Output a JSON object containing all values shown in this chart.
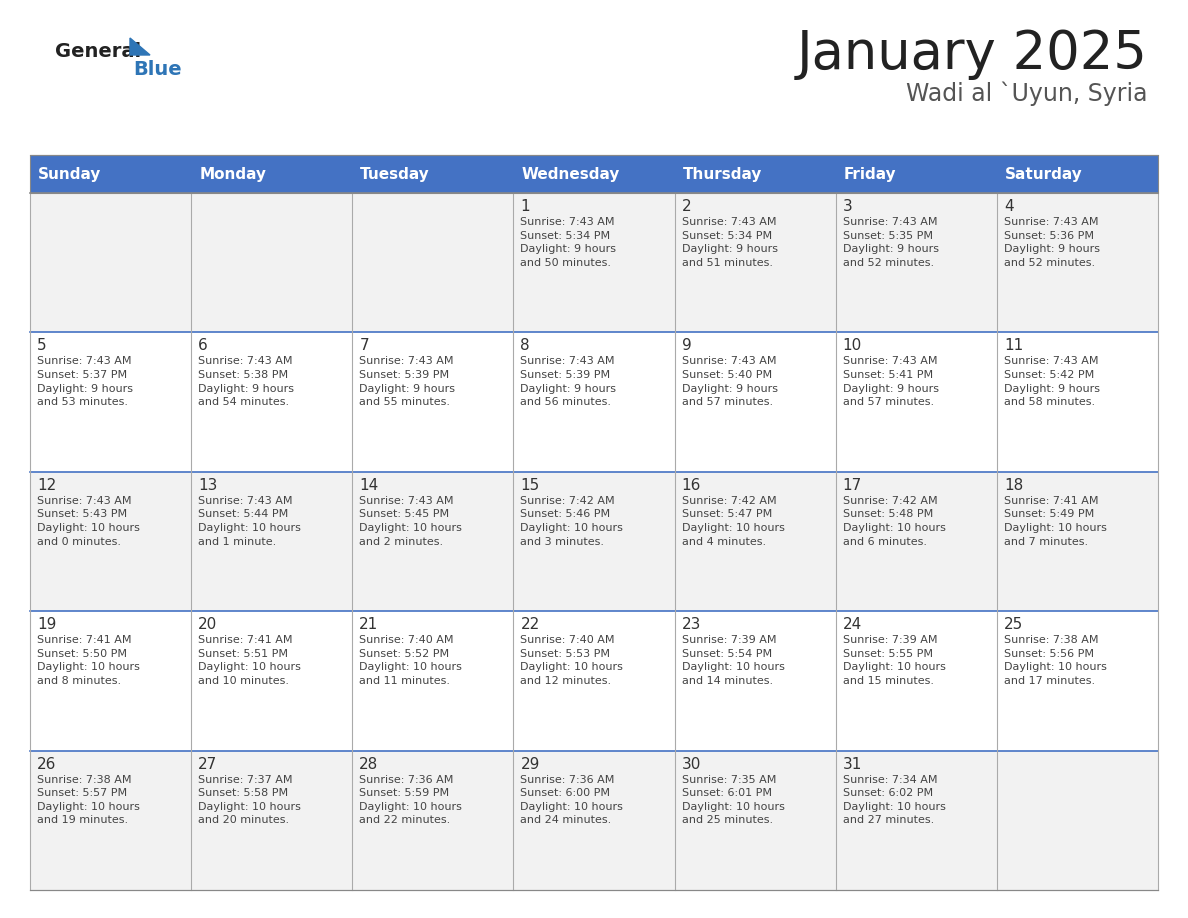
{
  "title": "January 2025",
  "subtitle": "Wadi al `Uyun, Syria",
  "days_of_week": [
    "Sunday",
    "Monday",
    "Tuesday",
    "Wednesday",
    "Thursday",
    "Friday",
    "Saturday"
  ],
  "header_bg": "#4472C4",
  "header_text": "#FFFFFF",
  "row_bg_odd": "#F2F2F2",
  "row_bg_even": "#FFFFFF",
  "cell_border": "#AAAAAA",
  "day_number_color": "#333333",
  "text_color": "#444444",
  "title_color": "#222222",
  "subtitle_color": "#555555",
  "logo_general_color": "#222222",
  "logo_blue_color": "#2E75B6",
  "logo_triangle_color": "#2E75B6",
  "calendar_data": [
    [
      {
        "day": null,
        "info": ""
      },
      {
        "day": null,
        "info": ""
      },
      {
        "day": null,
        "info": ""
      },
      {
        "day": 1,
        "info": "Sunrise: 7:43 AM\nSunset: 5:34 PM\nDaylight: 9 hours\nand 50 minutes."
      },
      {
        "day": 2,
        "info": "Sunrise: 7:43 AM\nSunset: 5:34 PM\nDaylight: 9 hours\nand 51 minutes."
      },
      {
        "day": 3,
        "info": "Sunrise: 7:43 AM\nSunset: 5:35 PM\nDaylight: 9 hours\nand 52 minutes."
      },
      {
        "day": 4,
        "info": "Sunrise: 7:43 AM\nSunset: 5:36 PM\nDaylight: 9 hours\nand 52 minutes."
      }
    ],
    [
      {
        "day": 5,
        "info": "Sunrise: 7:43 AM\nSunset: 5:37 PM\nDaylight: 9 hours\nand 53 minutes."
      },
      {
        "day": 6,
        "info": "Sunrise: 7:43 AM\nSunset: 5:38 PM\nDaylight: 9 hours\nand 54 minutes."
      },
      {
        "day": 7,
        "info": "Sunrise: 7:43 AM\nSunset: 5:39 PM\nDaylight: 9 hours\nand 55 minutes."
      },
      {
        "day": 8,
        "info": "Sunrise: 7:43 AM\nSunset: 5:39 PM\nDaylight: 9 hours\nand 56 minutes."
      },
      {
        "day": 9,
        "info": "Sunrise: 7:43 AM\nSunset: 5:40 PM\nDaylight: 9 hours\nand 57 minutes."
      },
      {
        "day": 10,
        "info": "Sunrise: 7:43 AM\nSunset: 5:41 PM\nDaylight: 9 hours\nand 57 minutes."
      },
      {
        "day": 11,
        "info": "Sunrise: 7:43 AM\nSunset: 5:42 PM\nDaylight: 9 hours\nand 58 minutes."
      }
    ],
    [
      {
        "day": 12,
        "info": "Sunrise: 7:43 AM\nSunset: 5:43 PM\nDaylight: 10 hours\nand 0 minutes."
      },
      {
        "day": 13,
        "info": "Sunrise: 7:43 AM\nSunset: 5:44 PM\nDaylight: 10 hours\nand 1 minute."
      },
      {
        "day": 14,
        "info": "Sunrise: 7:43 AM\nSunset: 5:45 PM\nDaylight: 10 hours\nand 2 minutes."
      },
      {
        "day": 15,
        "info": "Sunrise: 7:42 AM\nSunset: 5:46 PM\nDaylight: 10 hours\nand 3 minutes."
      },
      {
        "day": 16,
        "info": "Sunrise: 7:42 AM\nSunset: 5:47 PM\nDaylight: 10 hours\nand 4 minutes."
      },
      {
        "day": 17,
        "info": "Sunrise: 7:42 AM\nSunset: 5:48 PM\nDaylight: 10 hours\nand 6 minutes."
      },
      {
        "day": 18,
        "info": "Sunrise: 7:41 AM\nSunset: 5:49 PM\nDaylight: 10 hours\nand 7 minutes."
      }
    ],
    [
      {
        "day": 19,
        "info": "Sunrise: 7:41 AM\nSunset: 5:50 PM\nDaylight: 10 hours\nand 8 minutes."
      },
      {
        "day": 20,
        "info": "Sunrise: 7:41 AM\nSunset: 5:51 PM\nDaylight: 10 hours\nand 10 minutes."
      },
      {
        "day": 21,
        "info": "Sunrise: 7:40 AM\nSunset: 5:52 PM\nDaylight: 10 hours\nand 11 minutes."
      },
      {
        "day": 22,
        "info": "Sunrise: 7:40 AM\nSunset: 5:53 PM\nDaylight: 10 hours\nand 12 minutes."
      },
      {
        "day": 23,
        "info": "Sunrise: 7:39 AM\nSunset: 5:54 PM\nDaylight: 10 hours\nand 14 minutes."
      },
      {
        "day": 24,
        "info": "Sunrise: 7:39 AM\nSunset: 5:55 PM\nDaylight: 10 hours\nand 15 minutes."
      },
      {
        "day": 25,
        "info": "Sunrise: 7:38 AM\nSunset: 5:56 PM\nDaylight: 10 hours\nand 17 minutes."
      }
    ],
    [
      {
        "day": 26,
        "info": "Sunrise: 7:38 AM\nSunset: 5:57 PM\nDaylight: 10 hours\nand 19 minutes."
      },
      {
        "day": 27,
        "info": "Sunrise: 7:37 AM\nSunset: 5:58 PM\nDaylight: 10 hours\nand 20 minutes."
      },
      {
        "day": 28,
        "info": "Sunrise: 7:36 AM\nSunset: 5:59 PM\nDaylight: 10 hours\nand 22 minutes."
      },
      {
        "day": 29,
        "info": "Sunrise: 7:36 AM\nSunset: 6:00 PM\nDaylight: 10 hours\nand 24 minutes."
      },
      {
        "day": 30,
        "info": "Sunrise: 7:35 AM\nSunset: 6:01 PM\nDaylight: 10 hours\nand 25 minutes."
      },
      {
        "day": 31,
        "info": "Sunrise: 7:34 AM\nSunset: 6:02 PM\nDaylight: 10 hours\nand 27 minutes."
      },
      {
        "day": null,
        "info": ""
      }
    ]
  ]
}
